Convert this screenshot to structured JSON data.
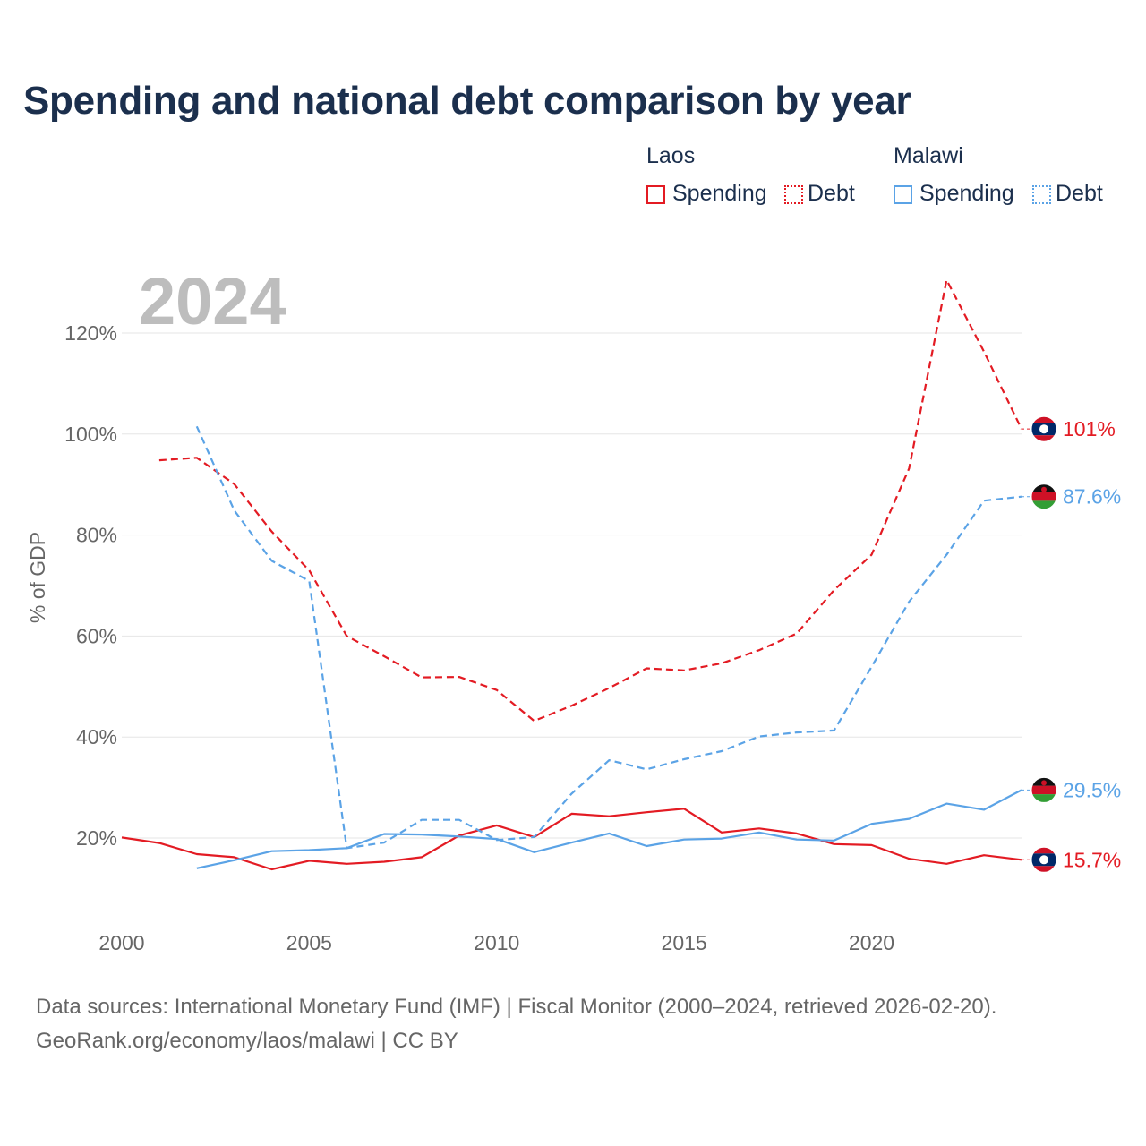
{
  "title": "Spending and national debt comparison by year",
  "legend": {
    "groups": [
      {
        "country": "Laos",
        "spending_label": "Spending",
        "debt_label": "Debt",
        "color": "#e31b23"
      },
      {
        "country": "Malawi",
        "spending_label": "Spending",
        "debt_label": "Debt",
        "color": "#5ba3e6"
      }
    ]
  },
  "year_label": "2024",
  "footer": {
    "line1": "Data sources: International Monetary Fund (IMF) | Fiscal Monitor (2000–2024, retrieved 2026-02-20).",
    "line2": "GeoRank.org/economy/laos/malawi | CC BY"
  },
  "chart_data": {
    "type": "line",
    "title": "Spending and national debt comparison by year",
    "xlabel": "",
    "ylabel": "% of GDP",
    "xlim": [
      2000,
      2024
    ],
    "ylim": [
      5,
      135
    ],
    "x_ticks": [
      2000,
      2005,
      2010,
      2015,
      2020
    ],
    "y_ticks": [
      20,
      40,
      60,
      80,
      100,
      120
    ],
    "y_tick_labels": [
      "20%",
      "40%",
      "60%",
      "80%",
      "100%",
      "120%"
    ],
    "grid": "horizontal",
    "series": [
      {
        "name": "Laos Spending",
        "country": "Laos",
        "metric": "Spending",
        "color": "#e31b23",
        "dashed": false,
        "x": [
          2000,
          2001,
          2002,
          2003,
          2004,
          2005,
          2006,
          2007,
          2008,
          2009,
          2010,
          2011,
          2012,
          2013,
          2014,
          2015,
          2016,
          2017,
          2018,
          2019,
          2020,
          2021,
          2022,
          2023,
          2024
        ],
        "values": [
          20.1,
          19.0,
          16.8,
          16.2,
          13.8,
          15.5,
          14.9,
          15.3,
          16.2,
          20.5,
          22.5,
          20.2,
          24.8,
          24.3,
          25.1,
          25.8,
          21.1,
          21.9,
          20.9,
          18.8,
          18.6,
          15.9,
          14.9,
          16.6,
          15.7
        ],
        "end_label": "15.7%"
      },
      {
        "name": "Laos Debt",
        "country": "Laos",
        "metric": "Debt",
        "color": "#e31b23",
        "dashed": true,
        "x": [
          2001,
          2002,
          2003,
          2004,
          2005,
          2006,
          2007,
          2008,
          2009,
          2010,
          2011,
          2012,
          2013,
          2014,
          2015,
          2016,
          2017,
          2018,
          2019,
          2020,
          2021,
          2022,
          2023,
          2024
        ],
        "values": [
          94.8,
          95.3,
          90.1,
          80.7,
          73.0,
          60.0,
          56.0,
          51.8,
          51.9,
          49.3,
          43.2,
          46.2,
          49.7,
          53.6,
          53.2,
          54.6,
          57.2,
          60.5,
          69.1,
          76.1,
          93.2,
          130.5,
          116.3,
          101.0
        ],
        "end_label": "101%"
      },
      {
        "name": "Malawi Spending",
        "country": "Malawi",
        "metric": "Spending",
        "color": "#5ba3e6",
        "dashed": false,
        "x": [
          2002,
          2003,
          2004,
          2005,
          2006,
          2007,
          2008,
          2009,
          2010,
          2011,
          2012,
          2013,
          2014,
          2015,
          2016,
          2017,
          2018,
          2019,
          2020,
          2021,
          2022,
          2023,
          2024
        ],
        "values": [
          14.0,
          15.6,
          17.4,
          17.6,
          18.0,
          20.8,
          20.7,
          20.3,
          19.8,
          17.2,
          19.1,
          20.9,
          18.4,
          19.7,
          19.9,
          21.1,
          19.7,
          19.5,
          22.8,
          23.8,
          26.8,
          25.6,
          29.5
        ],
        "end_label": "29.5%"
      },
      {
        "name": "Malawi Debt",
        "country": "Malawi",
        "metric": "Debt",
        "color": "#5ba3e6",
        "dashed": true,
        "x": [
          2002,
          2003,
          2004,
          2005,
          2006,
          2007,
          2008,
          2009,
          2010,
          2011,
          2012,
          2013,
          2014,
          2015,
          2016,
          2017,
          2018,
          2019,
          2020,
          2021,
          2022,
          2023,
          2024
        ],
        "values": [
          101.5,
          84.9,
          74.9,
          70.9,
          18.0,
          19.1,
          23.6,
          23.6,
          19.6,
          20.2,
          28.8,
          35.4,
          33.6,
          35.6,
          37.2,
          40.1,
          40.9,
          41.3,
          53.9,
          66.8,
          76.1,
          86.8,
          87.6
        ],
        "end_label": "87.6%"
      }
    ]
  }
}
